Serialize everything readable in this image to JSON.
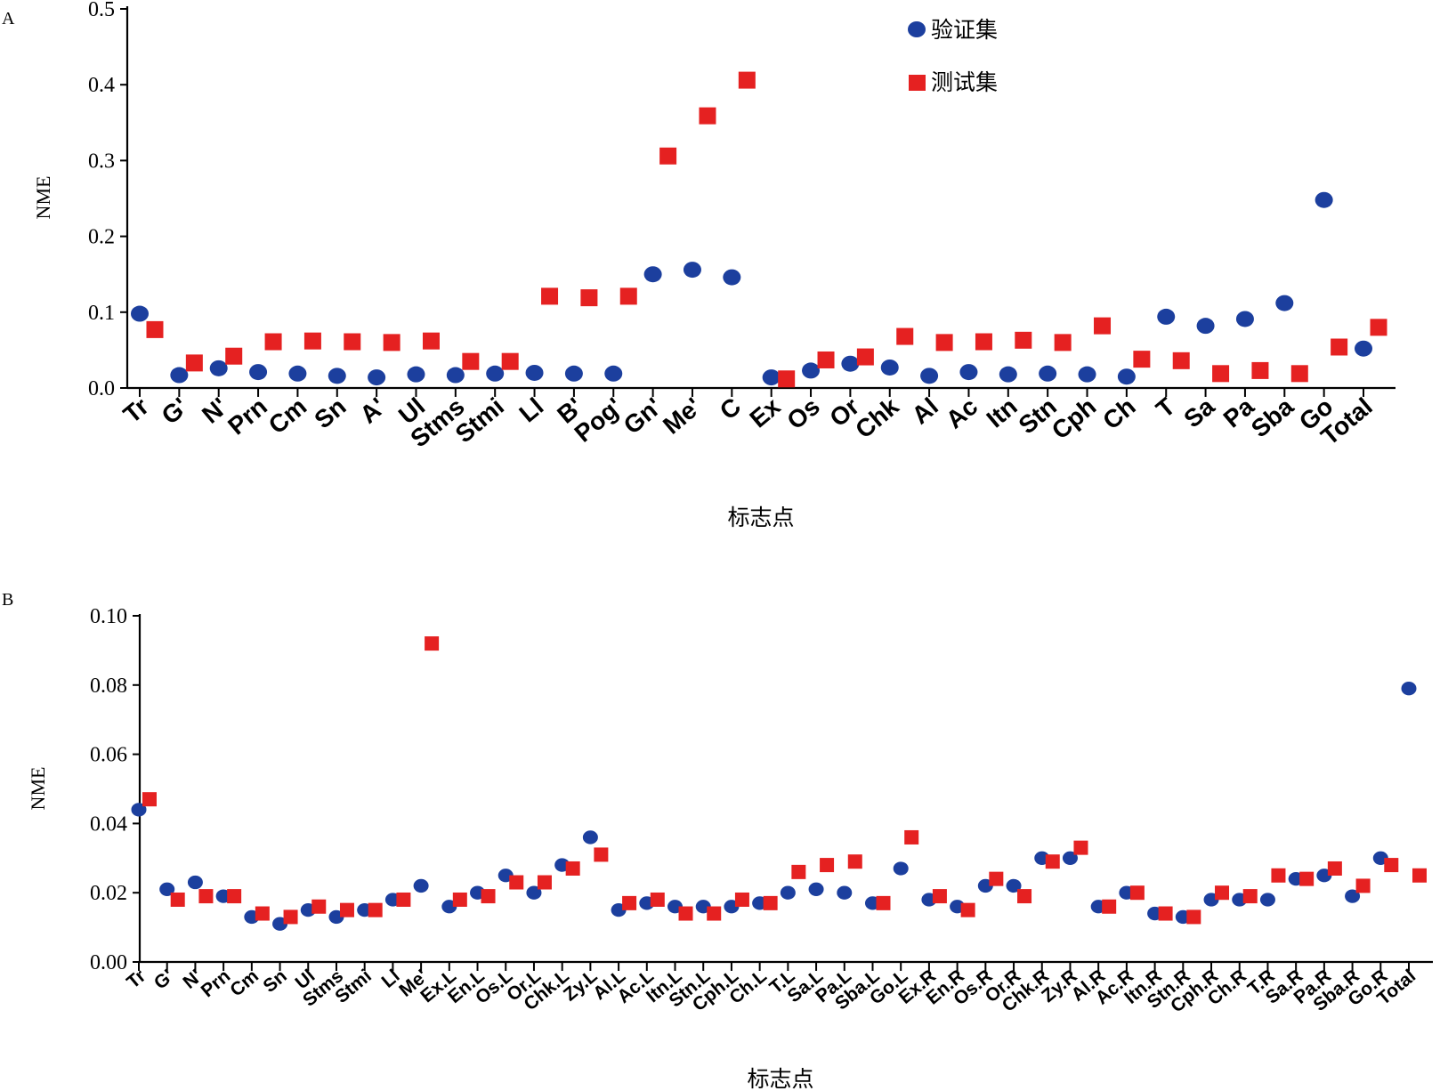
{
  "colors": {
    "validation": "#1c3f9e",
    "test": "#e52121"
  },
  "chart_data": [
    {
      "panel": "A",
      "type": "scatter",
      "ylabel": "NME",
      "xlabel": "标志点",
      "ylim": [
        0,
        0.5
      ],
      "yticks": [
        "0.0",
        "0.1",
        "0.2",
        "0.3",
        "0.4",
        "0.5"
      ],
      "legend": {
        "placement": "top-right"
      },
      "categories": [
        "Tr",
        "G'",
        "N'",
        "Prn",
        "Cm",
        "Sn",
        "A'",
        "Ul",
        "Stms",
        "Stmi",
        "Ll",
        "B'",
        "Pog'",
        "Gn'",
        "Me'",
        "C",
        "Ex",
        "Os",
        "Or",
        "Chk",
        "Al",
        "Ac",
        "Itn",
        "Stn",
        "Cph",
        "Ch",
        "T",
        "Sa",
        "Pa",
        "Sba",
        "Go",
        "Total"
      ],
      "series": [
        {
          "name": "验证集",
          "marker": "circle",
          "values": [
            0.098,
            0.017,
            0.026,
            0.021,
            0.019,
            0.016,
            0.014,
            0.018,
            0.017,
            0.019,
            0.02,
            0.019,
            0.019,
            0.15,
            0.156,
            0.146,
            0.014,
            0.023,
            0.032,
            0.027,
            0.016,
            0.021,
            0.018,
            0.019,
            0.018,
            0.015,
            0.094,
            0.082,
            0.091,
            0.112,
            0.248,
            0.052
          ]
        },
        {
          "name": "测试集",
          "marker": "square",
          "values": [
            0.077,
            0.033,
            0.042,
            0.061,
            0.062,
            0.061,
            0.06,
            0.062,
            0.035,
            0.035,
            0.121,
            0.119,
            0.121,
            0.306,
            0.359,
            0.406,
            0.012,
            0.037,
            0.041,
            0.068,
            0.06,
            0.061,
            0.063,
            0.06,
            0.082,
            0.038,
            0.036,
            0.019,
            0.023,
            0.019,
            0.054,
            0.08
          ]
        }
      ]
    },
    {
      "panel": "B",
      "type": "scatter",
      "ylabel": "NME",
      "xlabel": "标志点",
      "ylim": [
        0,
        0.1
      ],
      "yticks": [
        "0.00",
        "0.02",
        "0.04",
        "0.06",
        "0.08",
        "0.10"
      ],
      "categories": [
        "Tr",
        "G'",
        "N'",
        "Prn",
        "Cm",
        "Sn",
        "Ul",
        "Stms",
        "Stmi",
        "Ll",
        "Me'",
        "Ex.L",
        "En.L",
        "Os.L",
        "Or.L",
        "Chk.L",
        "Zy.L",
        "Al.L",
        "Ac.L",
        "Itn.L",
        "Stn.L",
        "Cph.L",
        "Ch.L",
        "T.L",
        "Sa.L",
        "Pa.L",
        "Sba.L",
        "Go.L",
        "Ex.R",
        "En.R",
        "Os.R",
        "Or.R",
        "Chk.R",
        "Zy.R",
        "Al.R",
        "Ac.R",
        "Itn.R",
        "Stn.R",
        "Cph.R",
        "Ch.R",
        "T.R",
        "Sa.R",
        "Pa.R",
        "Sba.R",
        "Go.R",
        "Total"
      ],
      "series": [
        {
          "name": "验证集",
          "marker": "circle",
          "values": [
            0.044,
            0.021,
            0.023,
            0.019,
            0.013,
            0.011,
            0.015,
            0.013,
            0.015,
            0.018,
            0.022,
            0.016,
            0.02,
            0.025,
            0.02,
            0.028,
            0.036,
            0.015,
            0.017,
            0.016,
            0.016,
            0.016,
            0.017,
            0.02,
            0.021,
            0.02,
            0.017,
            0.027,
            0.018,
            0.016,
            0.022,
            0.022,
            0.03,
            0.03,
            0.016,
            0.02,
            0.014,
            0.013,
            0.018,
            0.018,
            0.018,
            0.024,
            0.025,
            0.019,
            0.03,
            0.079
          ]
        },
        {
          "name": "测试集",
          "marker": "square",
          "values": [
            0.047,
            0.018,
            0.019,
            0.019,
            0.014,
            0.013,
            0.016,
            0.015,
            0.015,
            0.018,
            0.092,
            0.018,
            0.019,
            0.023,
            0.023,
            0.027,
            0.031,
            0.017,
            0.018,
            0.014,
            0.014,
            0.018,
            0.017,
            0.026,
            0.028,
            0.029,
            0.017,
            0.036,
            0.019,
            0.015,
            0.024,
            0.019,
            0.029,
            0.033,
            0.016,
            0.02,
            0.014,
            0.013,
            0.02,
            0.019,
            0.025,
            0.024,
            0.027,
            0.022,
            0.028,
            0.025
          ]
        }
      ]
    }
  ]
}
